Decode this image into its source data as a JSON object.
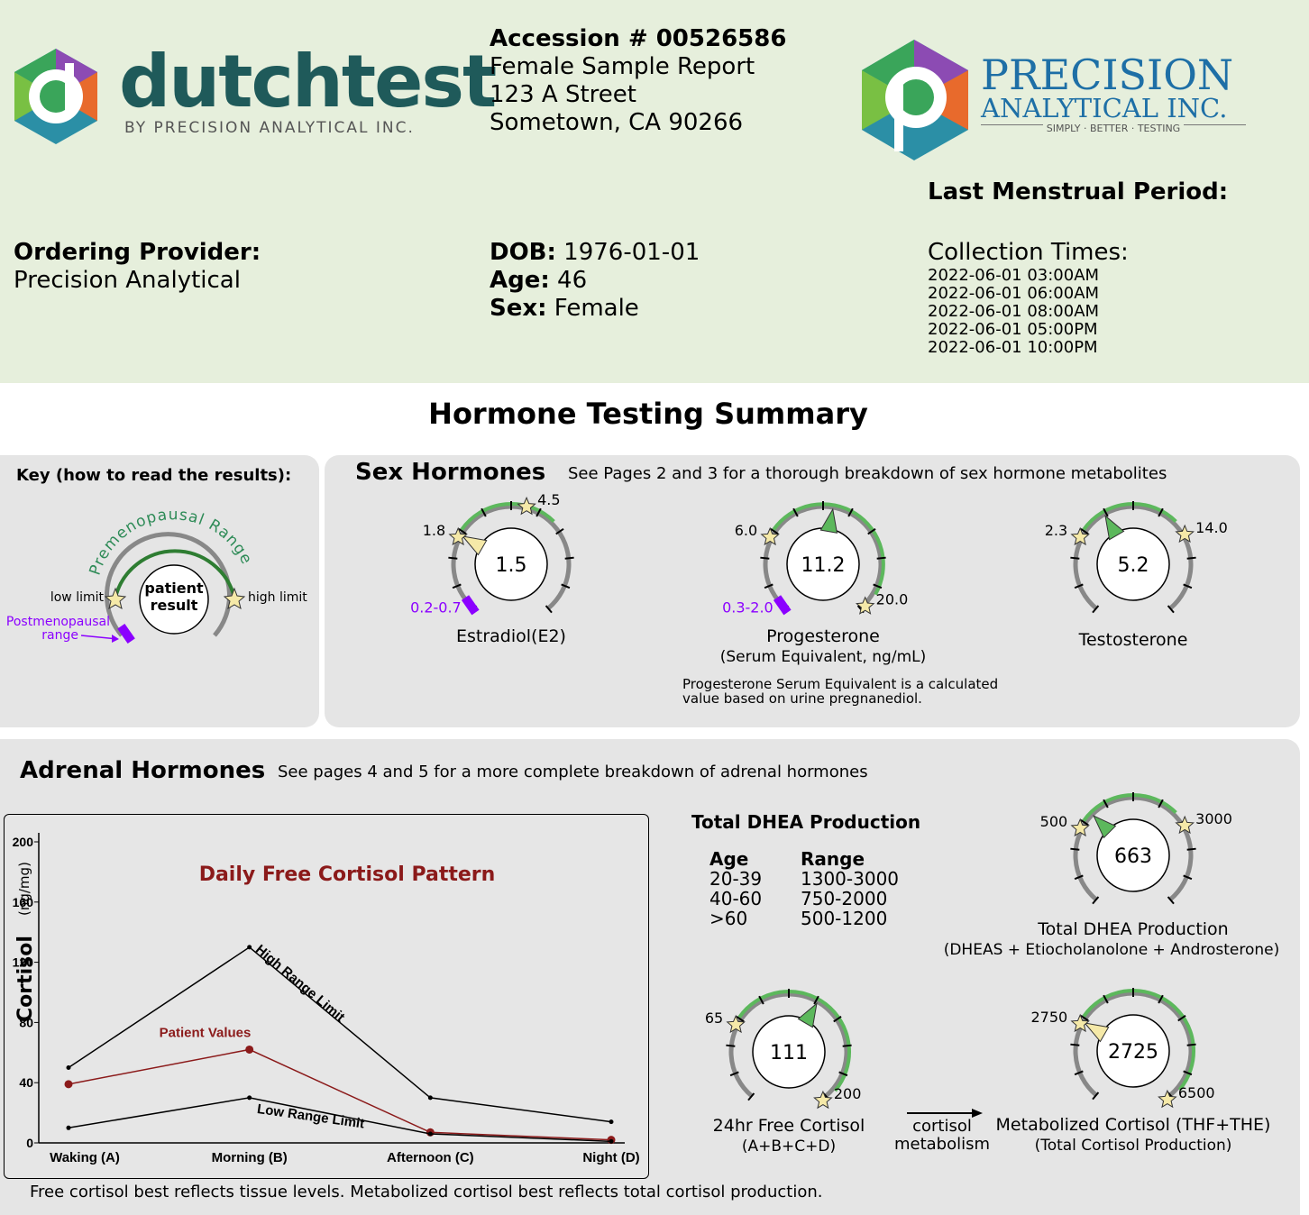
{
  "header": {
    "brand_left": {
      "name": "dutchtest",
      "tagline": "BY PRECISION ANALYTICAL INC."
    },
    "accession": "Accession # 00526586",
    "report_type": "Female Sample Report",
    "address_line1": "123 A Street",
    "address_line2": "Sometown, CA 90266",
    "brand_right": {
      "line1": "PRECISION",
      "line2": "ANALYTICAL INC.",
      "tagline": "SIMPLY · BETTER · TESTING"
    },
    "lmp_label": "Last Menstrual Period:",
    "provider_label": "Ordering Provider:",
    "provider_value": "Precision Analytical",
    "dob_label": "DOB:",
    "dob_value": "1976-01-01",
    "age_label": "Age:",
    "age_value": "46",
    "sex_label": "Sex:",
    "sex_value": "Female",
    "collection_label": "Collection Times:",
    "collection_times": [
      "2022-06-01 03:00AM",
      "2022-06-01 06:00AM",
      "2022-06-01 08:00AM",
      "2022-06-01 05:00PM",
      "2022-06-01 10:00PM"
    ]
  },
  "title": "Hormone Testing Summary",
  "key": {
    "title": "Key (how to read the results):",
    "range_arc_label": "Premenopausal Range",
    "center_line1": "patient",
    "center_line2": "result",
    "low_limit": "low limit",
    "high_limit": "high limit",
    "post_line1": "Postmenopausal",
    "post_line2": "range"
  },
  "sex_hormones": {
    "title": "Sex Hormones",
    "subtitle": "See Pages 2 and 3 for a thorough breakdown of sex hormone metabolites",
    "gauges": [
      {
        "name": "Estradiol(E2)",
        "value": "1.5",
        "low": "1.8",
        "high": "4.5",
        "post_range": "0.2-0.7"
      },
      {
        "name": "Progesterone",
        "sub": "(Serum Equivalent, ng/mL)",
        "value": "11.2",
        "low": "6.0",
        "high": "20.0",
        "post_range": "0.3-2.0"
      },
      {
        "name": "Testosterone",
        "value": "5.2",
        "low": "2.3",
        "high": "14.0"
      }
    ],
    "note_line1": "Progesterone Serum Equivalent is a calculated",
    "note_line2": "value based on urine pregnanediol."
  },
  "adrenal": {
    "title": "Adrenal Hormones",
    "subtitle": "See pages 4 and 5 for a more complete breakdown of adrenal hormones",
    "dhea_table": {
      "title": "Total DHEA Production",
      "head_age": "Age",
      "head_range": "Range",
      "rows": [
        [
          "20-39",
          "1300-3000"
        ],
        [
          "40-60",
          "750-2000"
        ],
        [
          ">60",
          "500-1200"
        ]
      ]
    },
    "gauges": {
      "dhea": {
        "value": "663",
        "low": "500",
        "high": "3000",
        "name": "Total DHEA Production",
        "sub": "(DHEAS + Etiocholanolone + Androsterone)"
      },
      "free_cortisol": {
        "value": "111",
        "low": "65",
        "high": "200",
        "name": "24hr Free Cortisol",
        "sub": "(A+B+C+D)"
      },
      "metab_cortisol": {
        "value": "2725",
        "low": "2750",
        "high": "6500",
        "name": "Metabolized Cortisol (THF+THE)",
        "sub": "(Total Cortisol Production)"
      }
    },
    "arrow_line1": "cortisol",
    "arrow_line2": "metabolism",
    "footer": "Free cortisol best reflects tissue levels. Metabolized cortisol best reflects total cortisol production."
  },
  "chart_data": {
    "type": "line",
    "title": "Daily Free Cortisol Pattern",
    "ylabel": "Cortisol",
    "yunit": "(ng/mg)",
    "ylim": [
      0,
      200
    ],
    "yticks": [
      0,
      40,
      80,
      120,
      160,
      200
    ],
    "categories": [
      "Waking (A)",
      "Morning (B)",
      "Afternoon (C)",
      "Night (D)"
    ],
    "series": [
      {
        "name": "High Range Limit",
        "values": [
          50,
          130,
          30,
          14
        ],
        "color": "#000000"
      },
      {
        "name": "Patient Values",
        "values": [
          39,
          62,
          7,
          2
        ],
        "color": "#8b1a1a"
      },
      {
        "name": "Low Range Limit",
        "values": [
          10,
          30,
          6,
          1
        ],
        "color": "#000000"
      }
    ]
  },
  "colors": {
    "header_bg": "#e6efdc",
    "panel_bg": "#e5e5e5",
    "green": "#5cb85c",
    "purple": "#8b00ff",
    "dark_red": "#8b1a1a",
    "star": "#f5e9a8"
  }
}
